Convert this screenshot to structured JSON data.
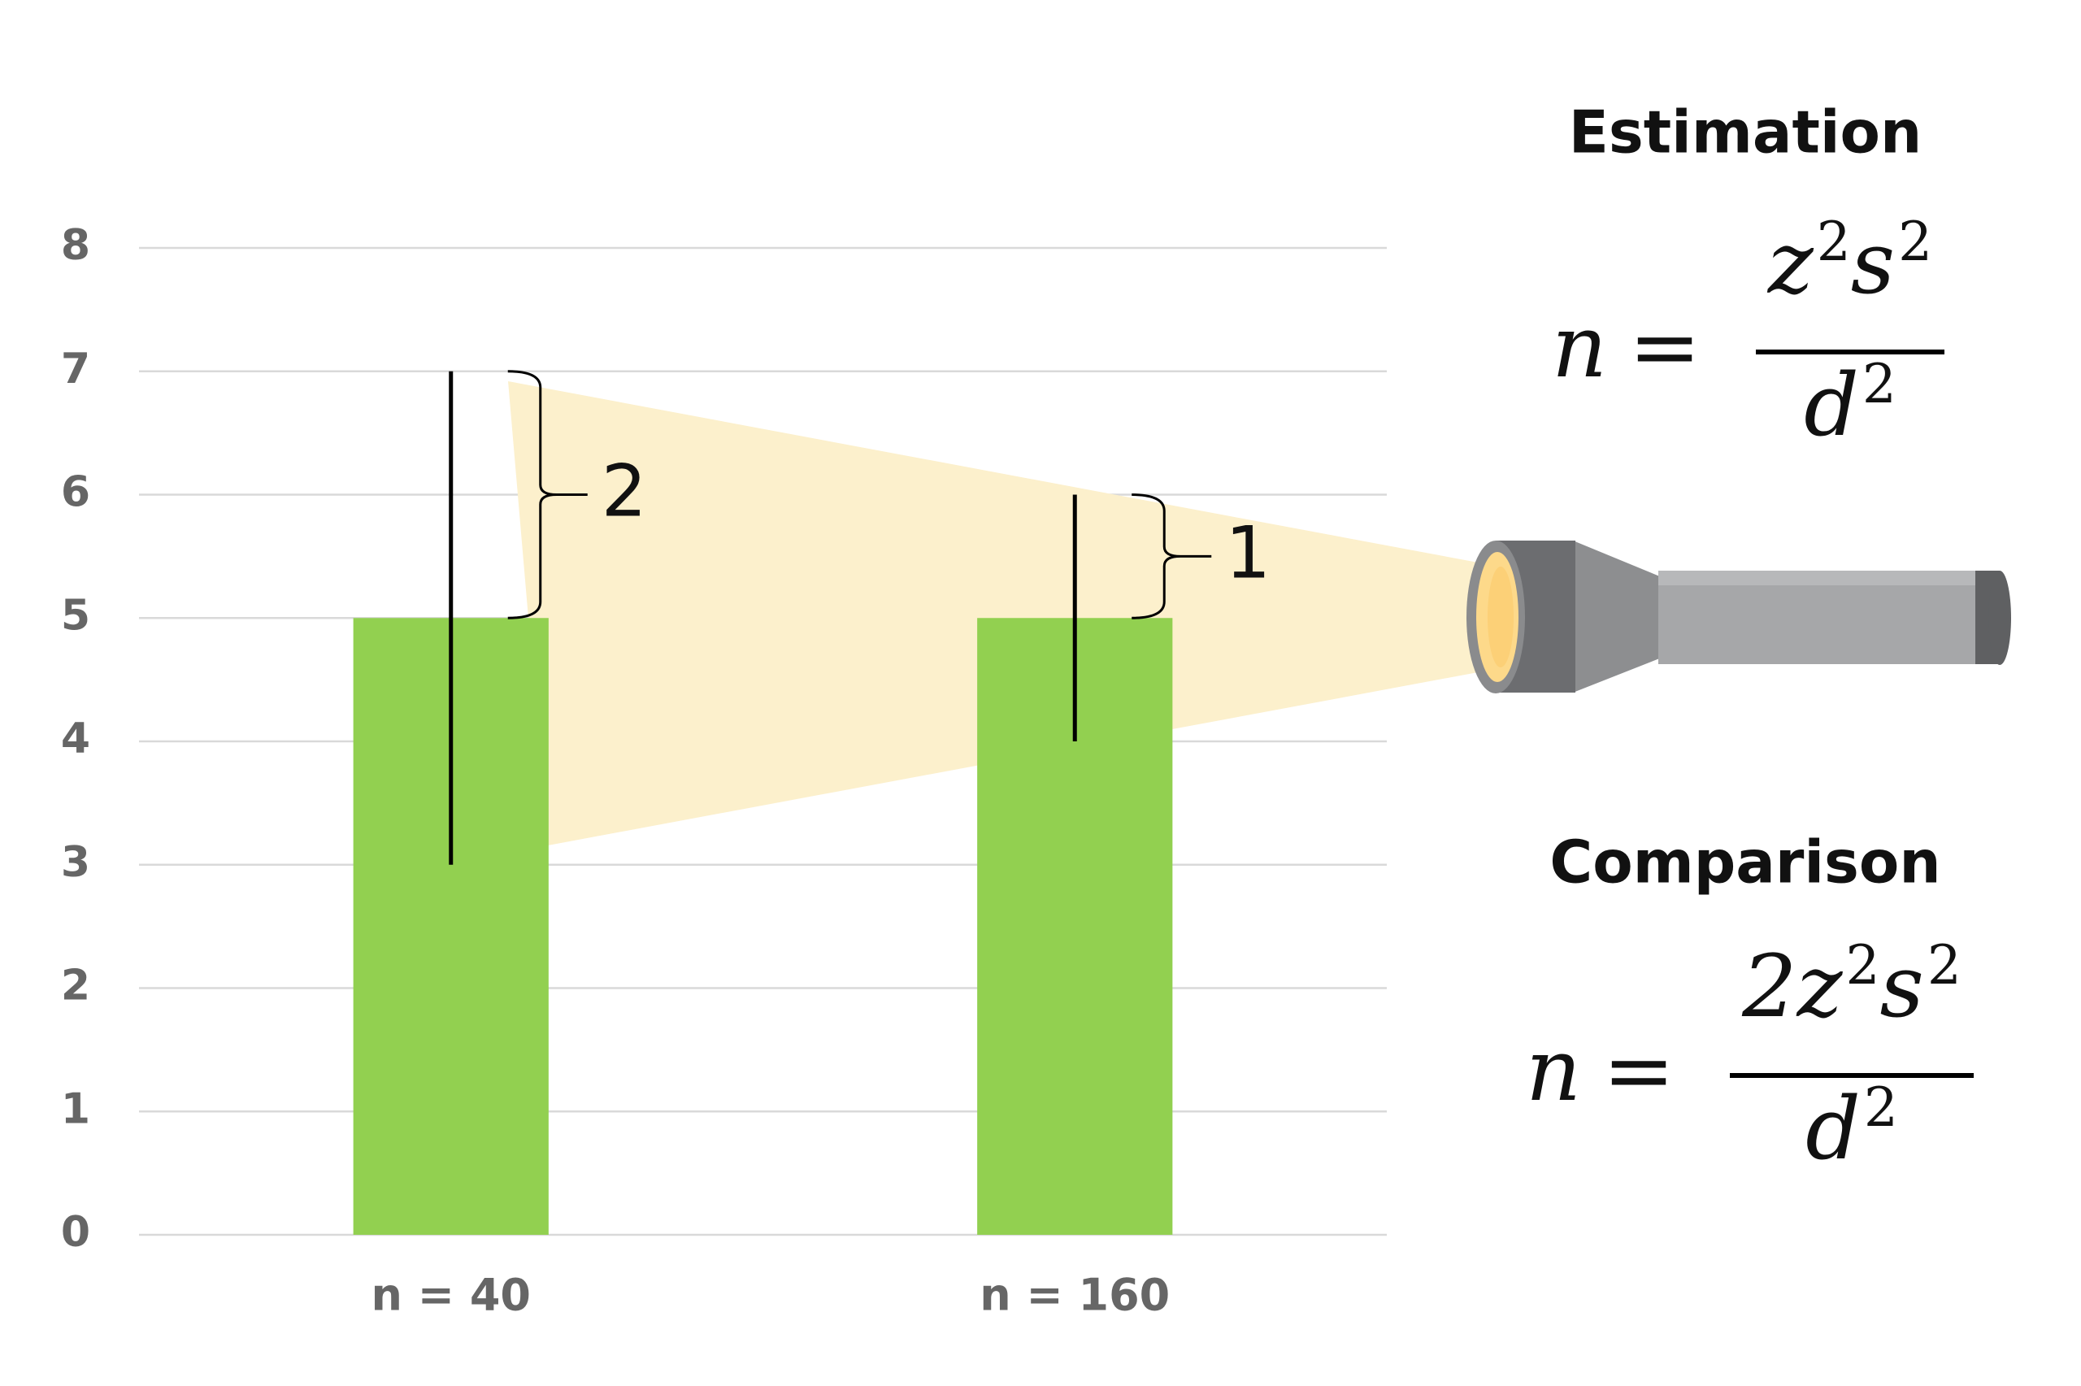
{
  "chart_data": {
    "type": "bar",
    "categories": [
      "n = 40",
      "n = 160"
    ],
    "values": [
      5,
      5
    ],
    "errors": [
      2,
      1
    ],
    "color": "#92d050",
    "ylim": [
      0,
      8
    ],
    "yticks": [
      0,
      1,
      2,
      3,
      4,
      5,
      6,
      7,
      8
    ],
    "grid": true
  },
  "formulas": [
    {
      "title": "Estimation",
      "lhs": "n",
      "eq": "=",
      "numerator": [
        {
          "base": "z",
          "sup": "2"
        },
        {
          "base": "s",
          "sup": "2"
        }
      ],
      "denominator": [
        {
          "base": "d",
          "sup": "2"
        }
      ]
    },
    {
      "title": "Comparison",
      "lhs": "n",
      "eq": "=",
      "numerator": [
        {
          "base": "2z",
          "sup": "2"
        },
        {
          "base": "s",
          "sup": "2"
        }
      ],
      "denominator": [
        {
          "base": "d",
          "sup": "2"
        }
      ]
    }
  ]
}
